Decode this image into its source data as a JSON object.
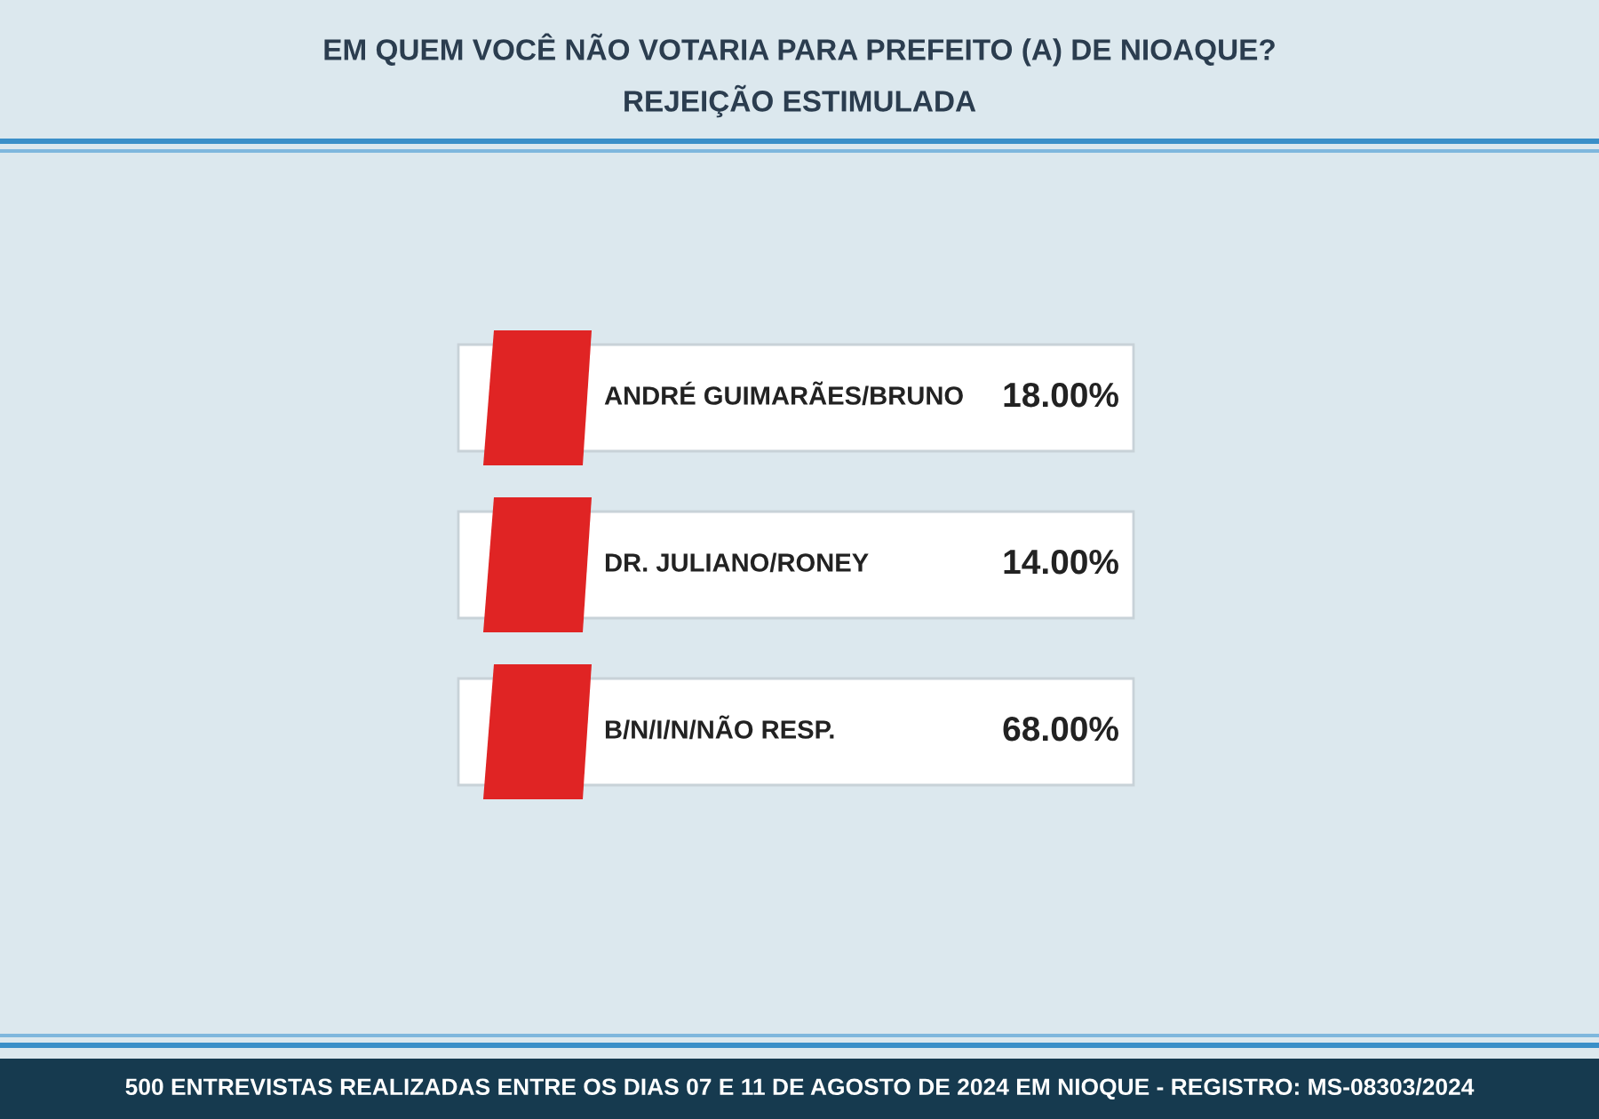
{
  "chart_data": {
    "type": "other",
    "title": "EM QUEM VOCÊ NÃO VOTARIA PARA PREFEITO (A) DE NIOAQUE?",
    "subtitle": "REJEIÇÃO ESTIMULADA",
    "categories": [
      "ANDRÉ GUIMARÃES/BRUNO",
      "DR. JULIANO/RONEY",
      "B/N/I/N/NÃO RESP."
    ],
    "values": [
      18.0,
      14.0,
      68.0
    ],
    "value_labels": [
      "18.00%",
      "14.00%",
      "68.00%"
    ],
    "annotations": [
      "500 ENTREVISTAS REALIZADAS ENTRE OS DIAS 07 E 11 DE AGOSTO DE 2024 EM NIOQUE - REGISTRO: MS-08303/2024"
    ]
  }
}
